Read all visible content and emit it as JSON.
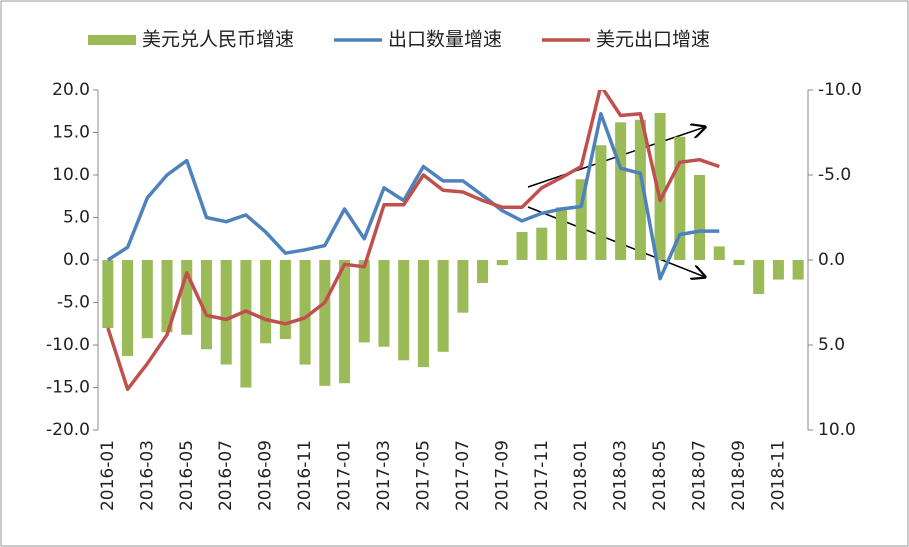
{
  "chart_data": {
    "type": "bar_line",
    "categories": [
      "2016-01",
      null,
      "2016-03",
      null,
      "2016-05",
      null,
      "2016-07",
      null,
      "2016-09",
      null,
      "2016-11",
      null,
      "2017-01",
      null,
      "2017-03",
      null,
      "2017-05",
      null,
      "2017-07",
      null,
      "2017-09",
      null,
      "2017-11",
      null,
      "2018-01",
      null,
      "2018-03",
      null,
      "2018-05",
      null,
      "2018-07",
      null,
      "2018-09",
      null,
      "2018-11",
      null
    ],
    "series": [
      {
        "name": "美元兑人民币增速",
        "type": "bar",
        "axis": "y2",
        "color": "#9bbb59",
        "values": [
          4.0,
          5.65,
          4.6,
          4.25,
          4.4,
          5.25,
          6.15,
          7.5,
          4.9,
          4.65,
          6.15,
          7.4,
          7.25,
          4.85,
          5.1,
          5.9,
          6.3,
          5.4,
          3.1,
          1.35,
          0.3,
          -1.65,
          -1.9,
          -3.1,
          -4.75,
          -6.75,
          -8.1,
          -8.25,
          -8.65,
          -7.25,
          -5.0,
          -0.8,
          0.3,
          2.0,
          1.15,
          1.15
        ]
      },
      {
        "name": "出口数量增速",
        "type": "line",
        "axis": "y",
        "color": "#4f81bd",
        "values": [
          0,
          1.5,
          7.3,
          10,
          11.7,
          5,
          4.5,
          5.3,
          3.3,
          0.8,
          1.2,
          1.7,
          6,
          2.5,
          8.5,
          7,
          11,
          9.3,
          9.3,
          7.6,
          5.8,
          4.6,
          5.5,
          6,
          6.3,
          17.2,
          10.8,
          10.2,
          -2.2,
          3,
          3.4,
          3.4,
          null,
          null,
          null,
          null
        ]
      },
      {
        "name": "美元出口增速",
        "type": "line",
        "axis": "y",
        "color": "#c0504d",
        "values": [
          -8,
          -15.2,
          -12.2,
          -8.8,
          -1.5,
          -6.5,
          -7,
          -6,
          -7,
          -7.5,
          -6.8,
          -5,
          -0.5,
          -0.8,
          6.5,
          6.5,
          10,
          8.2,
          8,
          7,
          6.2,
          6.2,
          8.5,
          9.7,
          11,
          20.5,
          17,
          17.2,
          7,
          11.5,
          11.8,
          11,
          null,
          null,
          null,
          null
        ]
      }
    ],
    "ylim": [
      -20,
      20
    ],
    "yticks": [
      {
        "value": 20,
        "label": "20.0"
      },
      {
        "value": 15,
        "label": "15.0"
      },
      {
        "value": 10,
        "label": "10.0"
      },
      {
        "value": 5,
        "label": "5.0"
      },
      {
        "value": 0,
        "label": "0.0"
      },
      {
        "value": -5,
        "label": "-5.0"
      },
      {
        "value": -10,
        "label": "-10.0"
      },
      {
        "value": -15,
        "label": "-15.0"
      },
      {
        "value": -20,
        "label": "-20.0"
      }
    ],
    "y2lim": [
      10,
      -10
    ],
    "y2ticks": [
      {
        "value": -10,
        "label": "-10.0"
      },
      {
        "value": -5,
        "label": "-5.0"
      },
      {
        "value": 0,
        "label": "0.0"
      },
      {
        "value": 5,
        "label": "5.0"
      },
      {
        "value": 10,
        "label": "10.0"
      }
    ],
    "legend": "top"
  }
}
